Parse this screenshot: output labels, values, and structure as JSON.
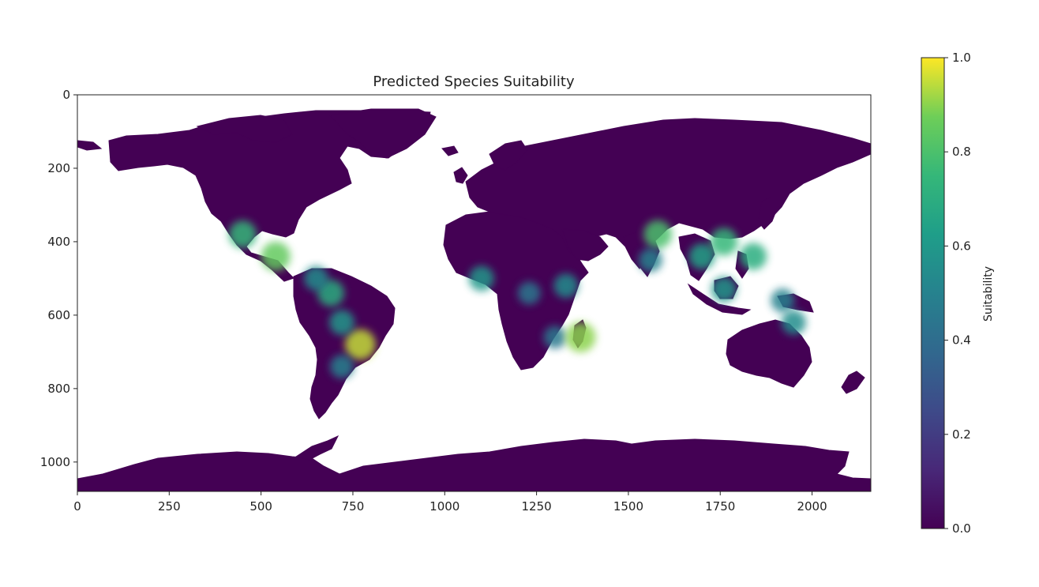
{
  "chart_data": {
    "type": "heatmap",
    "title": "Predicted Species Suitability",
    "xlabel": "",
    "ylabel": "",
    "xlim": [
      0,
      2160
    ],
    "ylim": [
      1080,
      0
    ],
    "x_ticks": [
      0,
      250,
      500,
      750,
      1000,
      1250,
      1500,
      1750,
      2000
    ],
    "y_ticks": [
      0,
      200,
      400,
      600,
      800,
      1000
    ],
    "grid": false,
    "colormap": "viridis",
    "colorbar": {
      "label": "Suitability",
      "range": [
        0.0,
        1.0
      ],
      "ticks": [
        "0.0",
        "0.2",
        "0.4",
        "0.6",
        "0.8",
        "1.0"
      ]
    },
    "background_value": 0.0,
    "hotspots": [
      {
        "region": "Brazil highlands",
        "x": 770,
        "y": 680,
        "value": 0.95
      },
      {
        "region": "Brazil interior",
        "x": 720,
        "y": 620,
        "value": 0.6
      },
      {
        "region": "Amazon north",
        "x": 690,
        "y": 540,
        "value": 0.7
      },
      {
        "region": "Northern South America coast",
        "x": 650,
        "y": 500,
        "value": 0.55
      },
      {
        "region": "Central America",
        "x": 540,
        "y": 440,
        "value": 0.85
      },
      {
        "region": "Mexico west coast",
        "x": 450,
        "y": 380,
        "value": 0.75
      },
      {
        "region": "Paraguay",
        "x": 720,
        "y": 740,
        "value": 0.5
      },
      {
        "region": "West Africa Sahel",
        "x": 1100,
        "y": 500,
        "value": 0.6
      },
      {
        "region": "Central Africa",
        "x": 1230,
        "y": 540,
        "value": 0.45
      },
      {
        "region": "East Africa",
        "x": 1330,
        "y": 520,
        "value": 0.55
      },
      {
        "region": "Southeast Africa",
        "x": 1300,
        "y": 660,
        "value": 0.45
      },
      {
        "region": "Madagascar east",
        "x": 1370,
        "y": 660,
        "value": 0.9
      },
      {
        "region": "India north",
        "x": 1580,
        "y": 380,
        "value": 0.8
      },
      {
        "region": "India south",
        "x": 1560,
        "y": 450,
        "value": 0.5
      },
      {
        "region": "Indochina",
        "x": 1700,
        "y": 440,
        "value": 0.65
      },
      {
        "region": "South China",
        "x": 1760,
        "y": 400,
        "value": 0.75
      },
      {
        "region": "Philippines",
        "x": 1840,
        "y": 440,
        "value": 0.7
      },
      {
        "region": "Indonesia",
        "x": 1760,
        "y": 530,
        "value": 0.6
      },
      {
        "region": "New Guinea",
        "x": 1920,
        "y": 560,
        "value": 0.5
      },
      {
        "region": "Australia northeast",
        "x": 1950,
        "y": 620,
        "value": 0.55
      }
    ]
  },
  "colors": {
    "viridis_0": "#440154",
    "viridis_025": "#3b528b",
    "viridis_05": "#21918c",
    "viridis_075": "#5ec962",
    "viridis_1": "#fde725",
    "ocean": "#ffffff",
    "land_base": "#440154"
  }
}
